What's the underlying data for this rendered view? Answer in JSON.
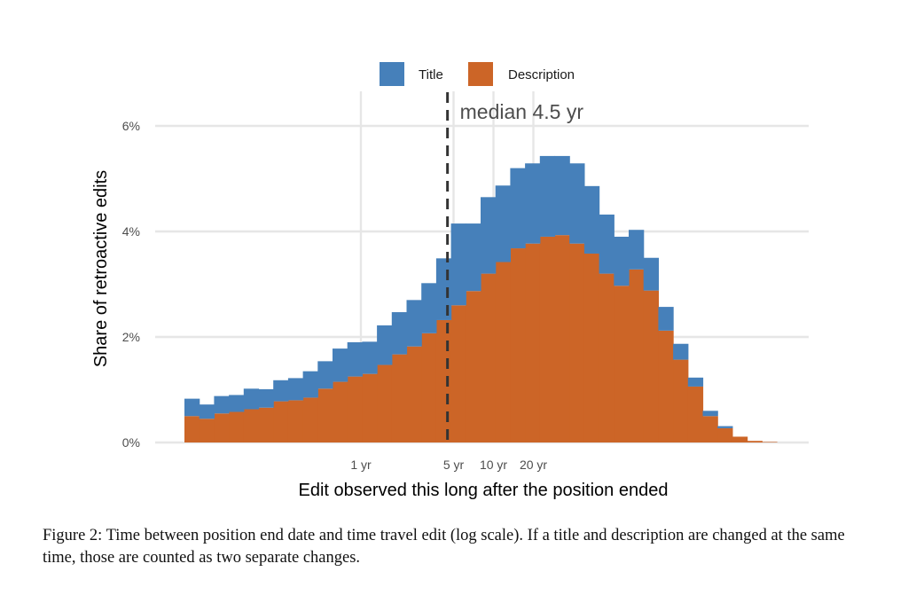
{
  "figure": {
    "caption": "Figure 2: Time between position end date and time travel edit (log scale). If a title and description are changed at the same time, those are counted as two separate changes."
  },
  "chart_data": {
    "type": "bar",
    "stacked": true,
    "xscale": "log",
    "xlabel": "Edit observed this long after the position ended",
    "ylabel": "Share of retroactive edits",
    "x_ticks": [
      "1 yr",
      "5 yr",
      "10 yr",
      "20 yr"
    ],
    "y_ticks": [
      "0%",
      "2%",
      "4%",
      "6%"
    ],
    "ylim": [
      0,
      6.6
    ],
    "grid": true,
    "legend_position": "top",
    "annotation": {
      "text": "median 4.5 yr",
      "x_years": 4.5
    },
    "series": [
      {
        "name": "Description",
        "color": "#cc6527",
        "values": [
          0.5,
          0.45,
          0.55,
          0.58,
          0.63,
          0.66,
          0.78,
          0.8,
          0.85,
          1.02,
          1.15,
          1.25,
          1.3,
          1.47,
          1.67,
          1.82,
          2.07,
          2.32,
          2.6,
          2.87,
          3.2,
          3.42,
          3.68,
          3.77,
          3.9,
          3.93,
          3.77,
          3.58,
          3.2,
          2.97,
          3.28,
          2.88,
          2.12,
          1.57,
          1.06,
          0.5,
          0.27,
          0.11,
          0.03,
          0.01
        ]
      },
      {
        "name": "Title",
        "color": "#4680ba",
        "values": [
          0.33,
          0.27,
          0.33,
          0.32,
          0.39,
          0.35,
          0.4,
          0.42,
          0.5,
          0.52,
          0.63,
          0.65,
          0.61,
          0.75,
          0.8,
          0.88,
          0.95,
          1.17,
          1.55,
          1.28,
          1.45,
          1.45,
          1.52,
          1.52,
          1.53,
          1.5,
          1.52,
          1.28,
          1.12,
          0.93,
          0.75,
          0.62,
          0.45,
          0.3,
          0.17,
          0.1,
          0.04,
          0.0,
          0.0,
          0.0
        ]
      }
    ]
  }
}
